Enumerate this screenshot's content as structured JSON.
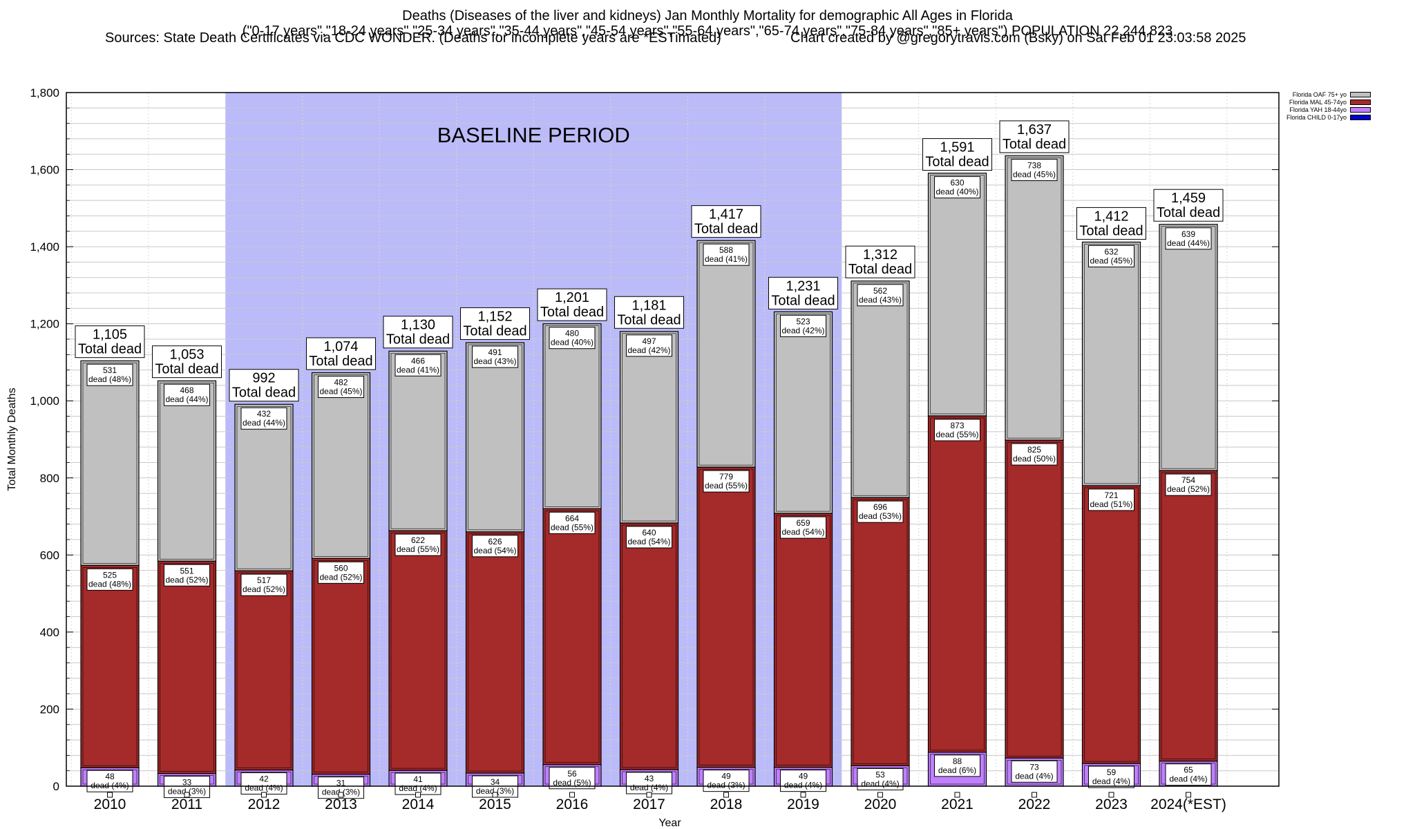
{
  "title": {
    "line1": "Deaths (Diseases of the liver and kidneys) Jan Monthly Mortality for demographic All Ages in Florida",
    "line2": "(\"0-17 years\",\"18-24 years\",\"25-34 years\",\"35-44 years\",\"45-54 years\",\"55-64 years\",\"65-74 years\",\"75-84 years\",\"85+ years\") POPULATION 22,244,823",
    "line3_left": "Sources: State Death Certificates via CDC WONDER. (Deaths for incomplete years are *ESTimated)",
    "line3_right": "Chart created by @gregorytravis.com (Bsky) on Sat Feb 01 23:03:58 2025"
  },
  "colors": {
    "oaf": "#c0c0c0",
    "mal": "#a52a2a",
    "yah": "#c080ff",
    "child": "#0000cd",
    "baseline": "#bbbbfa",
    "grid": "#c8c8c8"
  },
  "chart_data": {
    "type": "bar",
    "stacked": true,
    "categories": [
      "2010",
      "2011",
      "2012",
      "2013",
      "2014",
      "2015",
      "2016",
      "2017",
      "2018",
      "2019",
      "2020",
      "2021",
      "2022",
      "2023",
      "2024(*EST)"
    ],
    "series": [
      {
        "name": "Florida CHILD 0-17yo",
        "key": "child",
        "values": [
          0,
          0,
          0,
          0,
          0,
          0,
          0,
          0,
          0,
          0,
          0,
          0,
          0,
          0,
          0
        ]
      },
      {
        "name": "Florida YAH 18-44yo",
        "key": "yah",
        "values": [
          48,
          33,
          42,
          31,
          41,
          34,
          56,
          43,
          49,
          49,
          53,
          88,
          73,
          59,
          65
        ],
        "labels": [
          "48",
          "33",
          "42",
          "31",
          "41",
          "34",
          "56",
          "43",
          "49",
          "49",
          "53",
          "88",
          "73",
          "59",
          "65"
        ],
        "pcts": [
          "dead (4%)",
          "dead (3%)",
          "dead (4%)",
          "dead (3%)",
          "dead (4%)",
          "dead (3%)",
          "dead (5%)",
          "dead (4%)",
          "dead (3%)",
          "dead (4%)",
          "dead (4%)",
          "dead (6%)",
          "dead (4%)",
          "dead (4%)",
          "dead (4%)"
        ]
      },
      {
        "name": "Florida MAL 45-74yo",
        "key": "mal",
        "values": [
          525,
          551,
          517,
          560,
          622,
          626,
          664,
          640,
          779,
          659,
          696,
          873,
          825,
          721,
          754
        ],
        "labels": [
          "525",
          "551",
          "517",
          "560",
          "622",
          "626",
          "664",
          "640",
          "779",
          "659",
          "696",
          "873",
          "825",
          "721",
          "754"
        ],
        "pcts": [
          "dead (48%)",
          "dead (52%)",
          "dead (52%)",
          "dead (52%)",
          "dead (55%)",
          "dead (54%)",
          "dead (55%)",
          "dead (54%)",
          "dead (55%)",
          "dead (54%)",
          "dead (53%)",
          "dead (55%)",
          "dead (50%)",
          "dead (51%)",
          "dead (52%)"
        ]
      },
      {
        "name": "Florida OAF 75+ yo",
        "key": "oaf",
        "values": [
          531,
          468,
          432,
          482,
          466,
          491,
          480,
          497,
          588,
          523,
          562,
          630,
          738,
          632,
          639
        ],
        "labels": [
          "531",
          "468",
          "432",
          "482",
          "466",
          "491",
          "480",
          "497",
          "588",
          "523",
          "562",
          "630",
          "738",
          "632",
          "639"
        ],
        "pcts": [
          "dead (48%)",
          "dead (44%)",
          "dead (44%)",
          "dead (45%)",
          "dead (41%)",
          "dead (43%)",
          "dead (40%)",
          "dead (42%)",
          "dead (41%)",
          "dead (42%)",
          "dead (43%)",
          "dead (40%)",
          "dead (45%)",
          "dead (45%)",
          "dead (44%)"
        ]
      }
    ],
    "totals": [
      1105,
      1053,
      992,
      1074,
      1130,
      1152,
      1201,
      1181,
      1417,
      1231,
      1312,
      1591,
      1637,
      1412,
      1459
    ],
    "total_labels": [
      "1,105",
      "1,053",
      "992",
      "1,074",
      "1,130",
      "1,152",
      "1,201",
      "1,181",
      "1,417",
      "1,231",
      "1,312",
      "1,591",
      "1,637",
      "1,412",
      "1,459"
    ],
    "total_suffix": "Total dead",
    "ylabel": "Total Monthly Deaths",
    "xlabel": "Year",
    "ylim": [
      0,
      1800
    ],
    "yticks": [
      0,
      200,
      400,
      600,
      800,
      1000,
      1200,
      1400,
      1600,
      1800
    ],
    "ytick_labels": [
      "0",
      "200",
      "400",
      "600",
      "800",
      "1,000",
      "1,200",
      "1,400",
      "1,600",
      "1,800"
    ],
    "minor_step": 40,
    "baseline": {
      "label": "BASELINE PERIOD",
      "from_category": "2012",
      "to_category": "2019"
    },
    "legend_position": "top-right",
    "legend": [
      "Florida OAF 75+ yo",
      "Florida MAL 45-74yo",
      "Florida YAH 18-44yo",
      "Florida CHILD 0-17yo"
    ],
    "grid": true
  }
}
